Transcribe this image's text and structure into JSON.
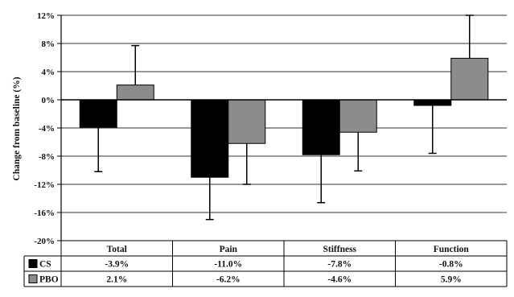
{
  "chart_data": {
    "type": "bar",
    "ylabel": "Change from baseline (%)",
    "ylim": [
      -20,
      12
    ],
    "yticks": [
      "12%",
      "8%",
      "4%",
      "0%",
      "-4%",
      "-8%",
      "-12%",
      "-16%",
      "-20%"
    ],
    "ytick_values": [
      12,
      8,
      4,
      0,
      -4,
      -8,
      -12,
      -16,
      -20
    ],
    "grid": true,
    "categories": [
      "Total",
      "Pain",
      "Stiffness",
      "Function"
    ],
    "series": [
      {
        "name": "CS",
        "color": "#000000",
        "values": [
          -3.9,
          -11.0,
          -7.8,
          -0.8
        ],
        "value_labels": [
          "-3.9%",
          "-11.0%",
          "-7.8%",
          "-0.8%"
        ],
        "error_bar_end": [
          -10.2,
          -17.0,
          -14.6,
          -7.6
        ]
      },
      {
        "name": "PBO",
        "color": "#8c8c8c",
        "values": [
          2.1,
          -6.2,
          -4.6,
          5.9
        ],
        "value_labels": [
          "2.1%",
          "-6.2%",
          "-4.6%",
          "5.9%"
        ],
        "error_bar_end": [
          7.7,
          -12.0,
          -10.1,
          12.0
        ]
      }
    ]
  }
}
